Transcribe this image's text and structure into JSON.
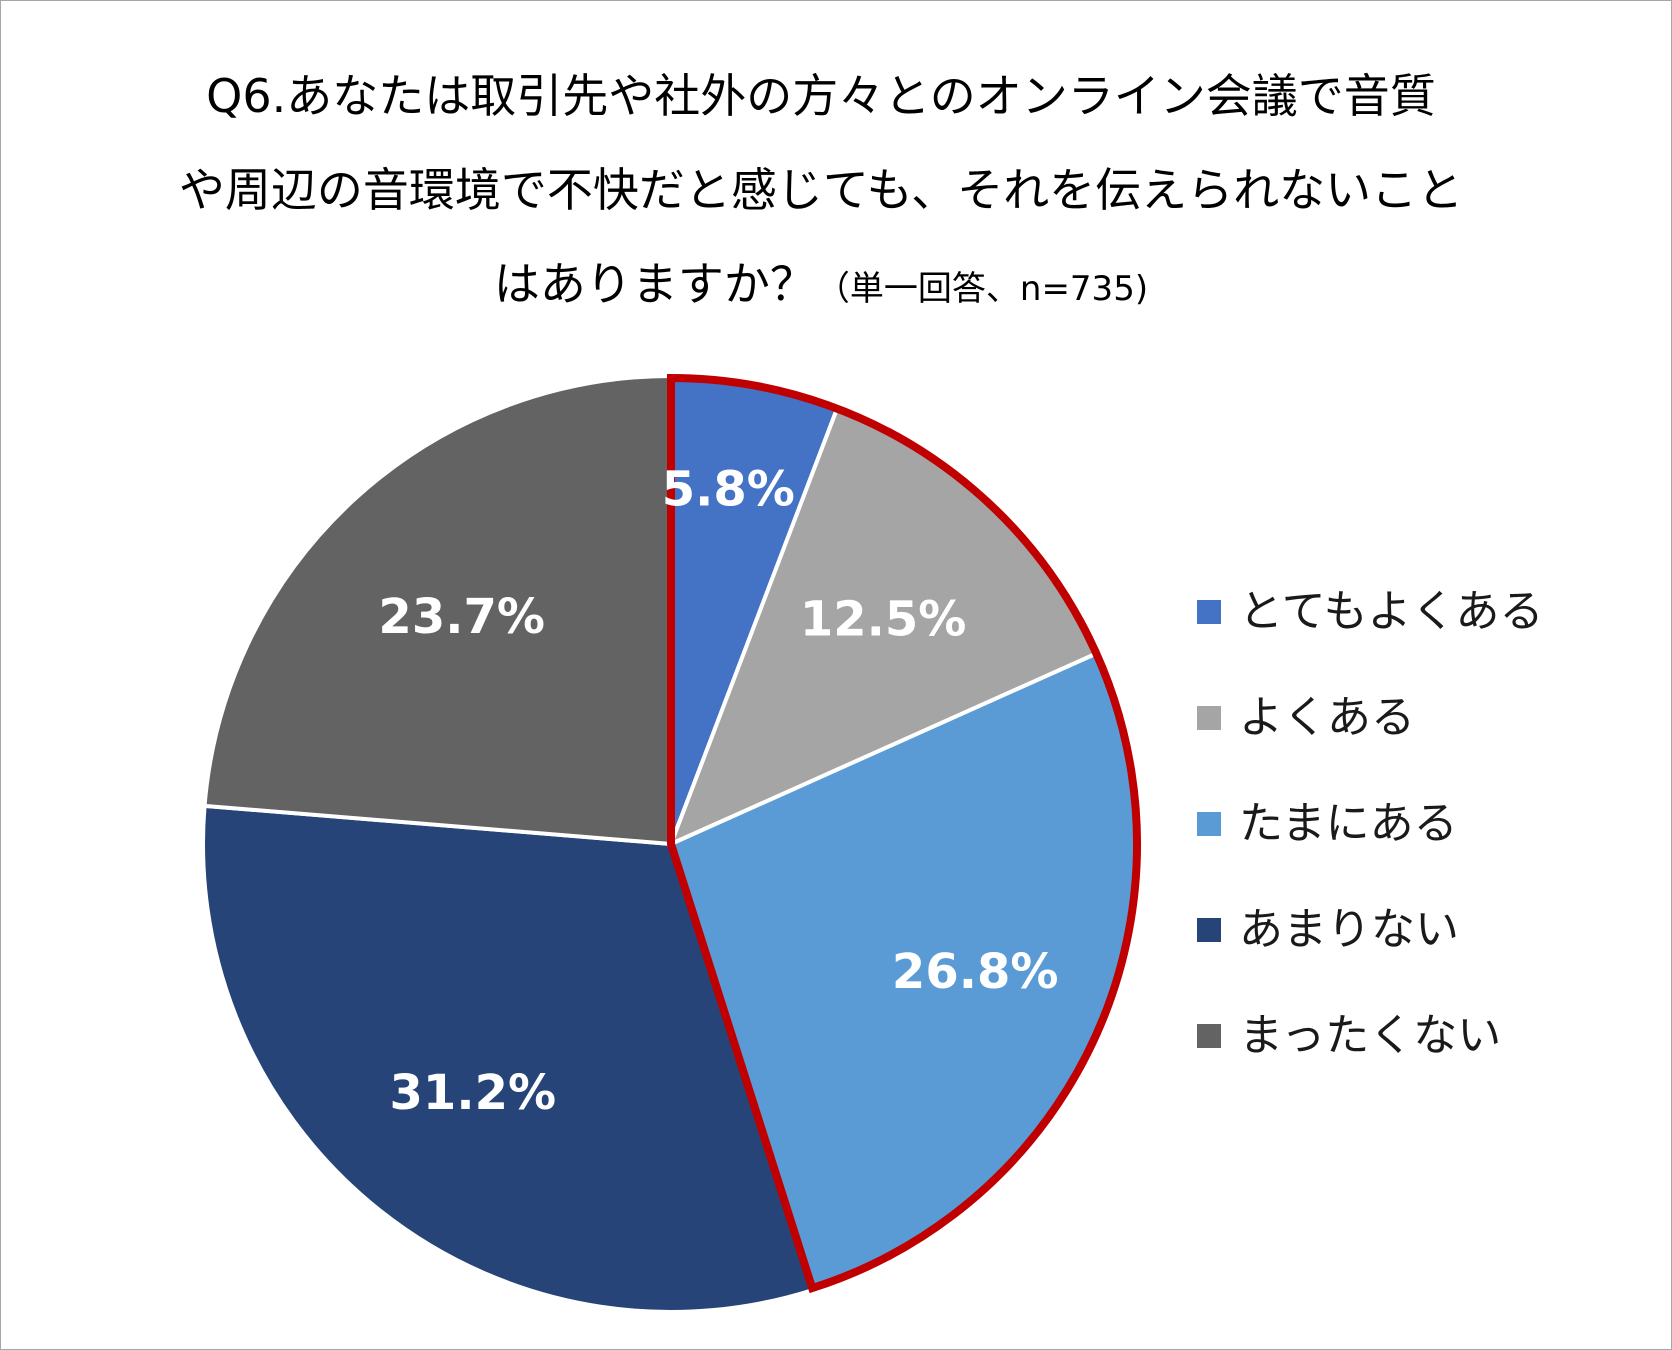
{
  "chart_data": {
    "type": "pie",
    "title": {
      "line1": "Q6.あなたは取引先や社外の方々とのオンライン会議で音質",
      "line2": "や周辺の音環境で不快だと感じても、それを伝えられないこと",
      "line3": "はありますか？",
      "note": "（単一回答、n=735)"
    },
    "categories": [
      "とてもよくある",
      "よくある",
      "たまにある",
      "あまりない",
      "まったくない"
    ],
    "values": [
      5.8,
      12.5,
      26.8,
      31.2,
      23.7
    ],
    "value_labels": [
      "5.8%",
      "12.5%",
      "26.8%",
      "31.2%",
      "23.7%"
    ],
    "colors": [
      "#4472c4",
      "#a5a5a5",
      "#5b9bd5",
      "#264478",
      "#636363"
    ],
    "highlight": {
      "categories": [
        "とてもよくある",
        "よくある",
        "たまにある"
      ],
      "color": "#c00000"
    },
    "legend_position": "right",
    "start_angle": "12 o'clock",
    "direction": "clockwise"
  }
}
